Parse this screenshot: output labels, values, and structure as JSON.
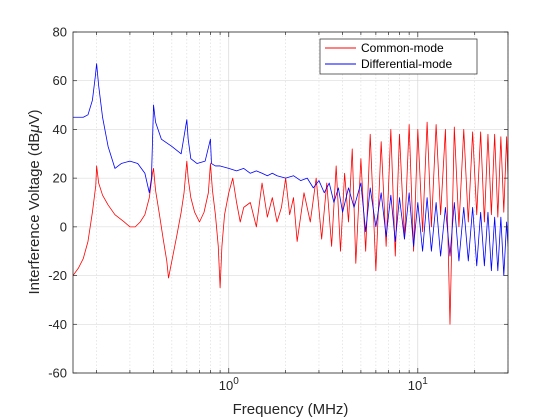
{
  "chart_data": {
    "type": "line",
    "x_scale": "log",
    "xlabel": "Frequency (MHz)",
    "ylabel": "Interference Voltage (dB",
    "ylabel_mu": "μ",
    "ylabel_unit_tail": "V)",
    "xlim": [
      0.15,
      30
    ],
    "ylim": [
      -60,
      80
    ],
    "y_ticks": [
      -60,
      -40,
      -20,
      0,
      20,
      40,
      60,
      80
    ],
    "x_ticks": [
      {
        "value": 1,
        "base": "10",
        "exp": "0"
      },
      {
        "value": 10,
        "base": "10",
        "exp": "1"
      }
    ],
    "grid": true,
    "legend_position": "top-right",
    "series": [
      {
        "name": "Common-mode",
        "color": "#ff0000",
        "points": [
          [
            0.15,
            -20
          ],
          [
            0.16,
            -17
          ],
          [
            0.17,
            -13
          ],
          [
            0.18,
            -6
          ],
          [
            0.19,
            6
          ],
          [
            0.198,
            17
          ],
          [
            0.2,
            25
          ],
          [
            0.205,
            18
          ],
          [
            0.215,
            13
          ],
          [
            0.23,
            9
          ],
          [
            0.25,
            5
          ],
          [
            0.28,
            2
          ],
          [
            0.3,
            0
          ],
          [
            0.32,
            0
          ],
          [
            0.34,
            2
          ],
          [
            0.36,
            5
          ],
          [
            0.38,
            12
          ],
          [
            0.395,
            22
          ],
          [
            0.4,
            24
          ],
          [
            0.41,
            15
          ],
          [
            0.43,
            5
          ],
          [
            0.45,
            -5
          ],
          [
            0.47,
            -14
          ],
          [
            0.48,
            -21
          ],
          [
            0.5,
            -14
          ],
          [
            0.53,
            -4
          ],
          [
            0.56,
            6
          ],
          [
            0.58,
            14
          ],
          [
            0.6,
            27
          ],
          [
            0.61,
            20
          ],
          [
            0.63,
            12
          ],
          [
            0.66,
            6
          ],
          [
            0.7,
            2
          ],
          [
            0.74,
            6
          ],
          [
            0.78,
            14
          ],
          [
            0.8,
            26
          ],
          [
            0.82,
            15
          ],
          [
            0.85,
            5
          ],
          [
            0.88,
            -8
          ],
          [
            0.9,
            -25
          ],
          [
            0.92,
            -8
          ],
          [
            0.95,
            5
          ],
          [
            1.0,
            14
          ],
          [
            1.05,
            20
          ],
          [
            1.1,
            10
          ],
          [
            1.15,
            2
          ],
          [
            1.2,
            8
          ],
          [
            1.3,
            10
          ],
          [
            1.4,
            0
          ],
          [
            1.5,
            18
          ],
          [
            1.6,
            4
          ],
          [
            1.7,
            12
          ],
          [
            1.8,
            2
          ],
          [
            1.9,
            8
          ],
          [
            2.0,
            20
          ],
          [
            2.1,
            5
          ],
          [
            2.2,
            12
          ],
          [
            2.3,
            -6
          ],
          [
            2.5,
            14
          ],
          [
            2.7,
            2
          ],
          [
            2.9,
            20
          ],
          [
            3.1,
            -5
          ],
          [
            3.3,
            18
          ],
          [
            3.5,
            -8
          ],
          [
            3.7,
            25
          ],
          [
            3.9,
            -10
          ],
          [
            4.1,
            22
          ],
          [
            4.3,
            2
          ],
          [
            4.5,
            32
          ],
          [
            4.7,
            -15
          ],
          [
            5.0,
            28
          ],
          [
            5.3,
            -10
          ],
          [
            5.6,
            38
          ],
          [
            6.0,
            -18
          ],
          [
            6.4,
            35
          ],
          [
            6.8,
            -8
          ],
          [
            7.2,
            40
          ],
          [
            7.6,
            -12
          ],
          [
            8.0,
            38
          ],
          [
            8.5,
            -5
          ],
          [
            9.0,
            42
          ],
          [
            9.5,
            -10
          ],
          [
            10,
            40
          ],
          [
            10.6,
            -2
          ],
          [
            11.2,
            43
          ],
          [
            11.8,
            0
          ],
          [
            12.5,
            42
          ],
          [
            13.2,
            5
          ],
          [
            14,
            40
          ],
          [
            14.8,
            -40
          ],
          [
            15.6,
            41
          ],
          [
            16.5,
            0
          ],
          [
            17.5,
            40
          ],
          [
            18.5,
            2
          ],
          [
            19.5,
            39
          ],
          [
            20.5,
            5
          ],
          [
            21.5,
            39
          ],
          [
            22.5,
            2
          ],
          [
            23.5,
            38
          ],
          [
            24.5,
            5
          ],
          [
            25.5,
            38
          ],
          [
            26.5,
            4
          ],
          [
            27.5,
            37
          ],
          [
            28.5,
            6
          ],
          [
            29.5,
            37
          ],
          [
            30,
            20
          ]
        ]
      },
      {
        "name": "Differential-mode",
        "color": "#0000ff",
        "points": [
          [
            0.15,
            45
          ],
          [
            0.16,
            45
          ],
          [
            0.17,
            45
          ],
          [
            0.18,
            46
          ],
          [
            0.19,
            52
          ],
          [
            0.197,
            62
          ],
          [
            0.2,
            67
          ],
          [
            0.205,
            58
          ],
          [
            0.215,
            45
          ],
          [
            0.23,
            33
          ],
          [
            0.25,
            24
          ],
          [
            0.27,
            26
          ],
          [
            0.3,
            27
          ],
          [
            0.33,
            26
          ],
          [
            0.36,
            22
          ],
          [
            0.38,
            14
          ],
          [
            0.39,
            20
          ],
          [
            0.4,
            50
          ],
          [
            0.41,
            43
          ],
          [
            0.44,
            36
          ],
          [
            0.5,
            33
          ],
          [
            0.56,
            30
          ],
          [
            0.6,
            44
          ],
          [
            0.61,
            36
          ],
          [
            0.63,
            28
          ],
          [
            0.68,
            26
          ],
          [
            0.75,
            27
          ],
          [
            0.8,
            36
          ],
          [
            0.81,
            26
          ],
          [
            0.85,
            25
          ],
          [
            0.9,
            25
          ],
          [
            1.0,
            24
          ],
          [
            1.1,
            23
          ],
          [
            1.2,
            24
          ],
          [
            1.3,
            22
          ],
          [
            1.4,
            23
          ],
          [
            1.5,
            22
          ],
          [
            1.6,
            21
          ],
          [
            1.7,
            22
          ],
          [
            1.8,
            21
          ],
          [
            2.0,
            20
          ],
          [
            2.2,
            21
          ],
          [
            2.4,
            19
          ],
          [
            2.6,
            20
          ],
          [
            2.8,
            16
          ],
          [
            3.0,
            19
          ],
          [
            3.2,
            14
          ],
          [
            3.4,
            18
          ],
          [
            3.6,
            10
          ],
          [
            3.8,
            16
          ],
          [
            4.0,
            6
          ],
          [
            4.3,
            16
          ],
          [
            4.6,
            8
          ],
          [
            5.0,
            18
          ],
          [
            5.3,
            -2
          ],
          [
            5.6,
            16
          ],
          [
            6.0,
            0
          ],
          [
            6.4,
            14
          ],
          [
            6.8,
            -4
          ],
          [
            7.2,
            13
          ],
          [
            7.6,
            -6
          ],
          [
            8.0,
            12
          ],
          [
            8.5,
            -5
          ],
          [
            9.0,
            14
          ],
          [
            9.5,
            -8
          ],
          [
            10,
            10
          ],
          [
            10.6,
            -10
          ],
          [
            11.2,
            12
          ],
          [
            11.8,
            -10
          ],
          [
            12.5,
            10
          ],
          [
            13.2,
            -12
          ],
          [
            14,
            8
          ],
          [
            14.8,
            -12
          ],
          [
            15.6,
            10
          ],
          [
            16.5,
            -14
          ],
          [
            17.5,
            8
          ],
          [
            18.5,
            -14
          ],
          [
            19.5,
            8
          ],
          [
            20.5,
            -16
          ],
          [
            21.5,
            6
          ],
          [
            22.5,
            -16
          ],
          [
            23.5,
            6
          ],
          [
            24.5,
            -18
          ],
          [
            25.5,
            4
          ],
          [
            26.5,
            -18
          ],
          [
            27.5,
            4
          ],
          [
            28.5,
            -20
          ],
          [
            29.5,
            2
          ],
          [
            30,
            -8
          ]
        ]
      }
    ]
  }
}
